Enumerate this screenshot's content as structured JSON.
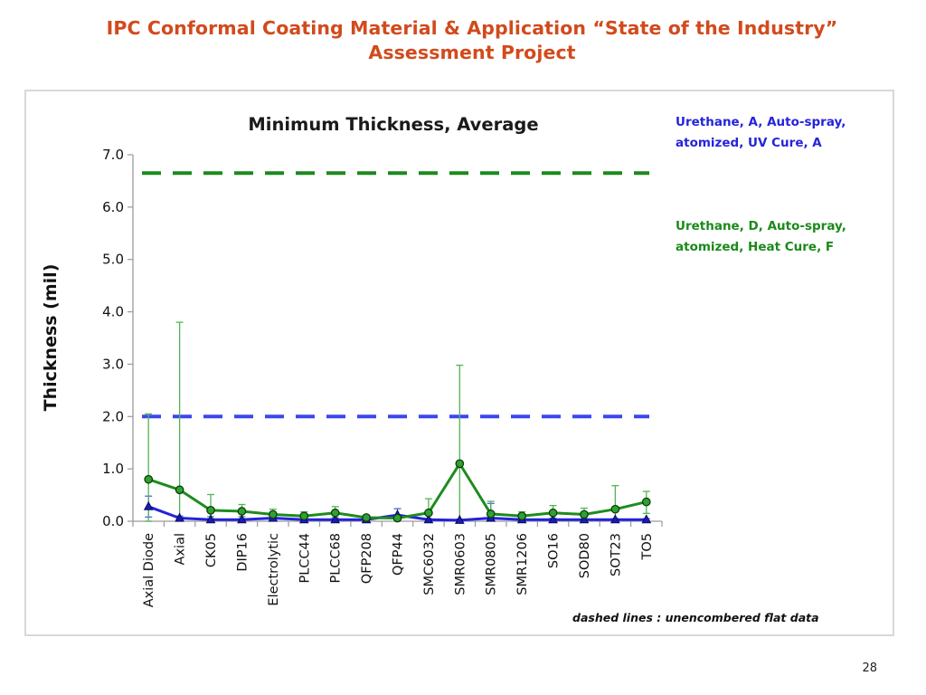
{
  "slide": {
    "title_line1": "IPC Conformal Coating Material & Application “State of the Industry”",
    "title_line2": "Assessment Project",
    "page_number": "28"
  },
  "chart_data": {
    "type": "line",
    "title": "Minimum Thickness, Average",
    "ylabel": "Thickness (mil)",
    "xlabel": "",
    "ylim": [
      0,
      7
    ],
    "yticks": [
      "0.0",
      "1.0",
      "2.0",
      "3.0",
      "4.0",
      "5.0",
      "6.0",
      "7.0"
    ],
    "categories": [
      "Axial Diode",
      "Axial",
      "CK05",
      "DIP16",
      "Electrolytic",
      "PLCC44",
      "PLCC68",
      "QFP208",
      "QFP44",
      "SMC6032",
      "SMR0603",
      "SMR0805",
      "SMR1206",
      "SO16",
      "SOD80",
      "SOT23",
      "TO5"
    ],
    "series": [
      {
        "name": "Urethane, A, Auto-spray, atomized, UV Cure, A",
        "legend_lines": [
          "Urethane, A, Auto-spray,",
          "atomized, UV Cure, A"
        ],
        "color": "#2222dd",
        "marker": "triangle",
        "values": [
          0.28,
          0.06,
          0.03,
          0.03,
          0.06,
          0.03,
          0.03,
          0.03,
          0.12,
          0.03,
          0.02,
          0.06,
          0.03,
          0.03,
          0.03,
          0.03,
          0.03
        ],
        "err_low": [
          0.2,
          0.02,
          0.02,
          0.02,
          0.03,
          0.02,
          0.02,
          0.02,
          0.08,
          0.02,
          0.02,
          0.04,
          0.02,
          0.02,
          0.02,
          0.02,
          0.02
        ],
        "err_high": [
          0.2,
          0.04,
          0.02,
          0.02,
          0.04,
          0.02,
          0.02,
          0.02,
          0.12,
          0.02,
          0.02,
          0.28,
          0.02,
          0.02,
          0.02,
          0.02,
          0.02
        ],
        "flat_reference": 2.0,
        "flat_color": "#3b46f0"
      },
      {
        "name": "Urethane, D, Auto-spray, atomized, Heat Cure, F",
        "legend_lines": [
          "Urethane, D, Auto-spray,",
          "atomized, Heat Cure, F"
        ],
        "color": "#1e8c1e",
        "marker": "circle",
        "values": [
          0.8,
          0.6,
          0.21,
          0.19,
          0.13,
          0.1,
          0.16,
          0.07,
          0.06,
          0.16,
          1.1,
          0.14,
          0.1,
          0.16,
          0.13,
          0.23,
          0.37
        ],
        "err_low": [
          0.8,
          0.6,
          0.12,
          0.1,
          0.08,
          0.06,
          0.09,
          0.04,
          0.04,
          0.12,
          1.1,
          0.1,
          0.06,
          0.1,
          0.08,
          0.18,
          0.22
        ],
        "err_high": [
          1.25,
          3.2,
          0.3,
          0.13,
          0.1,
          0.08,
          0.12,
          0.04,
          0.04,
          0.27,
          1.88,
          0.24,
          0.08,
          0.14,
          0.12,
          0.45,
          0.2
        ],
        "flat_reference": 6.65,
        "flat_color": "#1a8a1a"
      }
    ],
    "annotation": "dashed lines : unencombered flat data",
    "grid": false,
    "legend_position": "right"
  }
}
